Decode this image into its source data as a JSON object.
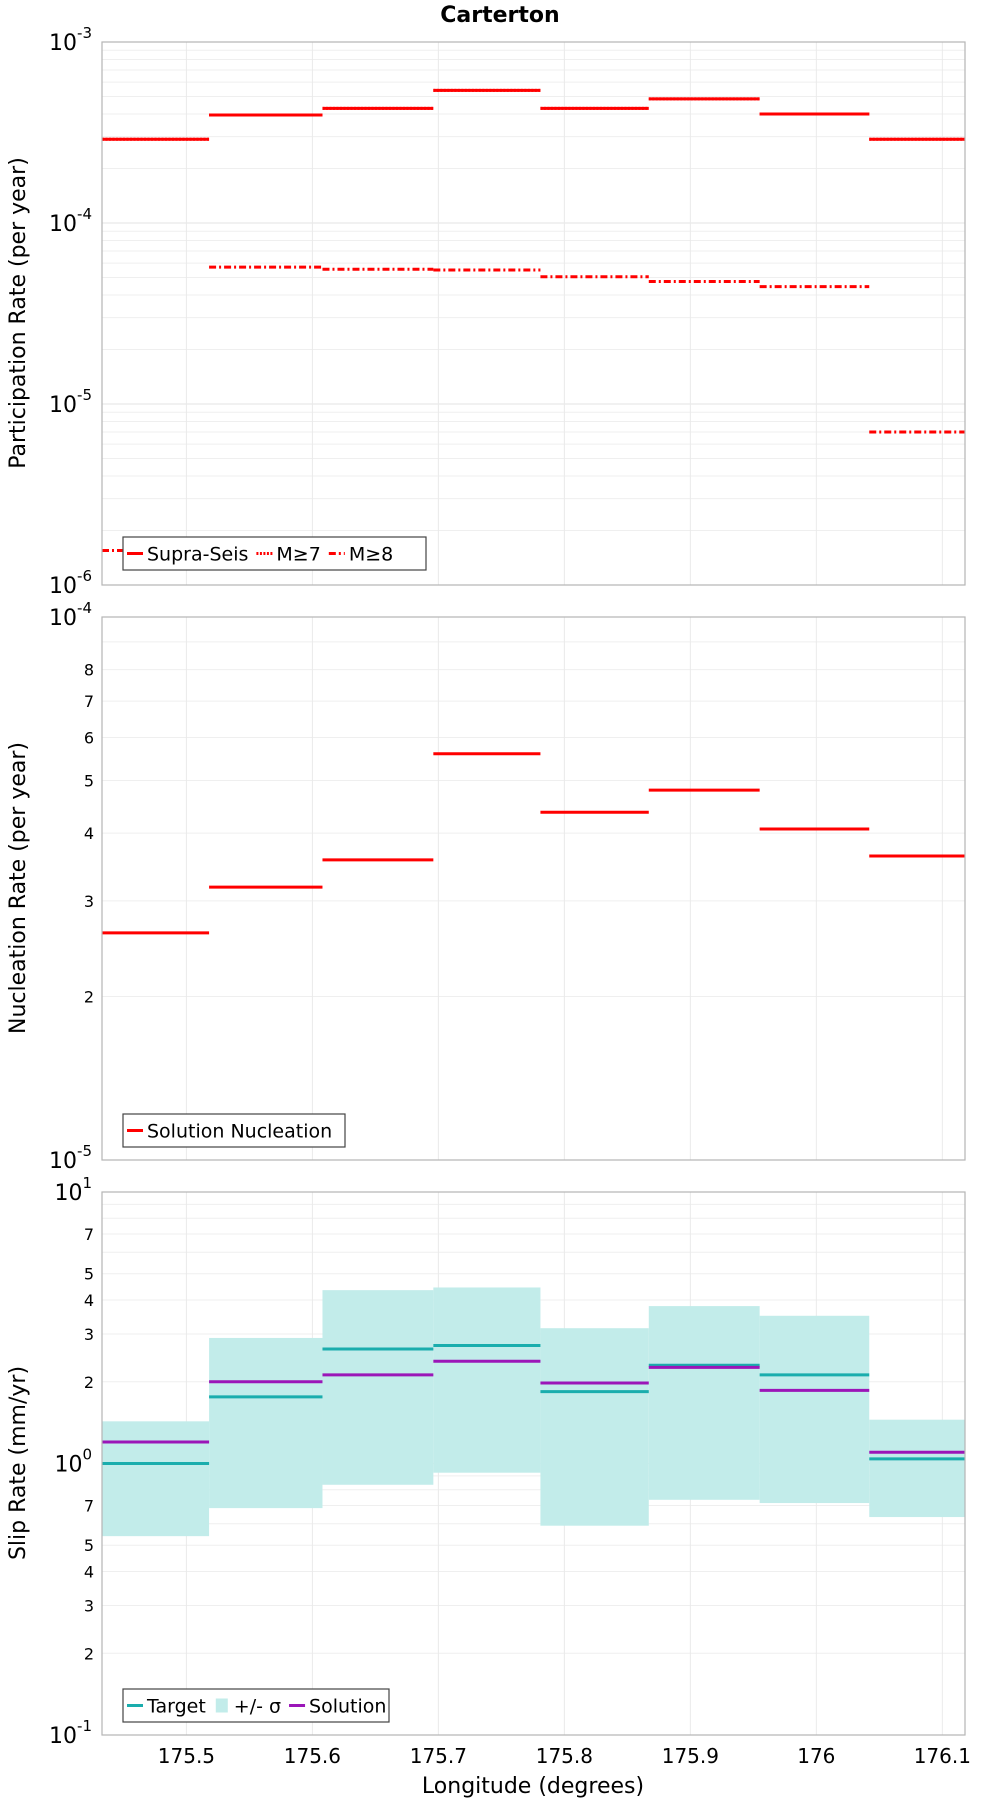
{
  "chart_data": {
    "title": "Carterton",
    "xlabel": "Longitude (degrees)",
    "xlim": [
      175.433,
      176.118
    ],
    "xticks": [
      "175.5",
      "175.6",
      "175.7",
      "175.8",
      "175.9",
      "176",
      "176.1"
    ],
    "xtick_values": [
      175.5,
      175.6,
      175.7,
      175.8,
      175.9,
      176.0,
      176.1
    ],
    "bins": [
      175.433,
      175.518,
      175.608,
      175.696,
      175.781,
      175.867,
      175.955,
      176.042,
      176.118
    ],
    "panels": [
      {
        "type": "line",
        "ylabel": "Participation Rate (per year)",
        "yscale": "log",
        "ylim": [
          1e-06,
          0.001
        ],
        "major_ticks": [
          {
            "value": 0.001,
            "base": "10",
            "exp": "-3"
          },
          {
            "value": 0.0001,
            "base": "10",
            "exp": "-4"
          },
          {
            "value": 1e-05,
            "base": "10",
            "exp": "-5"
          },
          {
            "value": 1e-06,
            "base": "10",
            "exp": "-6"
          }
        ],
        "minor_labels": [],
        "series": [
          {
            "name": "Supra-Seis",
            "style": "solid",
            "color": "#ff0000",
            "values": [
              0.00029,
              0.000395,
              0.00043,
              0.00054,
              0.00043,
              0.000485,
              0.0004,
              0.00029
            ]
          },
          {
            "name": "M≥7",
            "style": "dotted",
            "color": "#ff0000",
            "values": [
              0.00029,
              0.000395,
              0.00043,
              0.00054,
              0.00043,
              0.000485,
              0.0004,
              0.00029
            ]
          },
          {
            "name": "M≥8",
            "style": "dashdot",
            "color": "#ff0000",
            "values": [
              1.55e-06,
              5.7e-05,
              5.55e-05,
              5.5e-05,
              5.05e-05,
              4.75e-05,
              4.45e-05,
              7e-06
            ]
          }
        ]
      },
      {
        "type": "line",
        "ylabel": "Nucleation Rate (per year)",
        "yscale": "log",
        "ylim": [
          1e-05,
          0.0001
        ],
        "major_ticks": [
          {
            "value": 0.0001,
            "base": "10",
            "exp": "-4"
          },
          {
            "value": 1e-05,
            "base": "10",
            "exp": "-5"
          }
        ],
        "minor_labels": [
          {
            "value": 8e-05,
            "label": "8"
          },
          {
            "value": 7e-05,
            "label": "7"
          },
          {
            "value": 6e-05,
            "label": "6"
          },
          {
            "value": 5e-05,
            "label": "5"
          },
          {
            "value": 4e-05,
            "label": "4"
          },
          {
            "value": 3e-05,
            "label": "3"
          },
          {
            "value": 2e-05,
            "label": "2"
          }
        ],
        "series": [
          {
            "name": "Solution Nucleation",
            "style": "solid",
            "color": "#ff0000",
            "values": [
              2.62e-05,
              3.18e-05,
              3.57e-05,
              5.6e-05,
              4.37e-05,
              4.8e-05,
              4.07e-05,
              3.63e-05
            ]
          }
        ]
      },
      {
        "type": "area",
        "ylabel": "Slip Rate (mm/yr)",
        "yscale": "log",
        "ylim": [
          0.1,
          10
        ],
        "major_ticks": [
          {
            "value": 10,
            "base": "10",
            "exp": "1"
          },
          {
            "value": 1,
            "base": "10",
            "exp": "0"
          },
          {
            "value": 0.1,
            "base": "10",
            "exp": "-1"
          }
        ],
        "minor_labels": [
          {
            "value": 7,
            "label": "7"
          },
          {
            "value": 5,
            "label": "5"
          },
          {
            "value": 4,
            "label": "4"
          },
          {
            "value": 3,
            "label": "3"
          },
          {
            "value": 2,
            "label": "2"
          },
          {
            "value": 0.7,
            "label": "7"
          },
          {
            "value": 0.5,
            "label": "5"
          },
          {
            "value": 0.4,
            "label": "4"
          },
          {
            "value": 0.3,
            "label": "3"
          },
          {
            "value": 0.2,
            "label": "2"
          }
        ],
        "band": {
          "name": "+/- σ",
          "color": "#c2ecea",
          "upper": [
            1.43,
            2.9,
            4.35,
            4.45,
            3.15,
            3.8,
            3.5,
            1.45
          ],
          "lower": [
            0.54,
            0.685,
            0.835,
            0.925,
            0.59,
            0.735,
            0.715,
            0.635
          ]
        },
        "series": [
          {
            "name": "Target",
            "style": "solid",
            "color": "#1aadad",
            "values": [
              1.0,
              1.76,
              2.64,
              2.72,
              1.84,
              2.3,
              2.12,
              1.04
            ]
          },
          {
            "name": "Solution",
            "style": "solid",
            "color": "#9b16b8",
            "values": [
              1.2,
              2.0,
              2.12,
              2.38,
              1.98,
              2.26,
              1.86,
              1.1
            ]
          }
        ]
      }
    ]
  }
}
